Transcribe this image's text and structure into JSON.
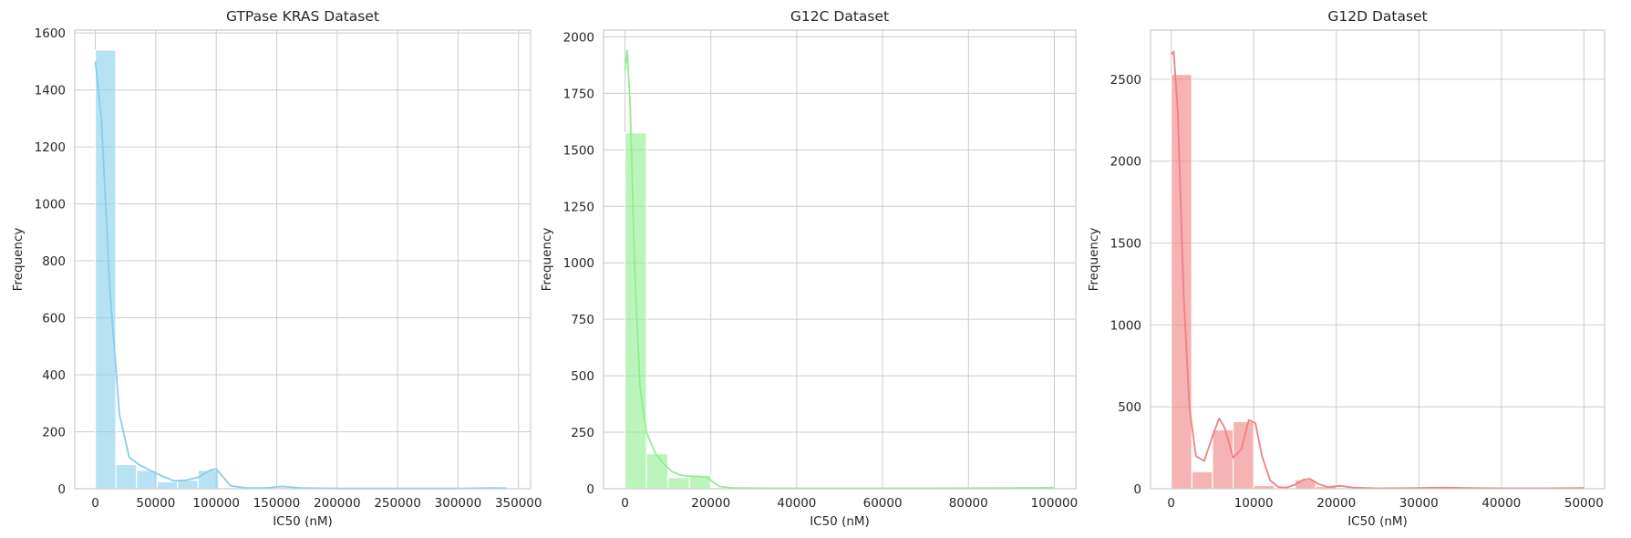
{
  "chart_data": [
    {
      "type": "histogram",
      "title": "GTPase KRAS Dataset",
      "xlabel": "IC50 (nM)",
      "ylabel": "Frequency",
      "xlim": [
        -17000,
        360000
      ],
      "ylim": [
        0,
        1610
      ],
      "xticks": [
        0,
        50000,
        100000,
        150000,
        200000,
        250000,
        300000,
        350000
      ],
      "yticks": [
        0,
        200,
        400,
        600,
        800,
        1000,
        1200,
        1400,
        1600
      ],
      "bar_color": "#87ceeb",
      "bin_edges": [
        0,
        17000,
        34000,
        51000,
        68000,
        85000,
        102000,
        119000,
        136000,
        153000,
        170000,
        187000,
        204000,
        221000,
        238000,
        255000,
        272000,
        289000,
        306000,
        323000,
        340000
      ],
      "counts": [
        1540,
        85,
        65,
        25,
        30,
        65,
        3,
        2,
        4,
        3,
        1,
        0,
        0,
        0,
        0,
        1,
        0,
        0,
        0,
        2
      ],
      "kde": {
        "x": [
          0,
          5000,
          12000,
          20000,
          28000,
          36000,
          45000,
          55000,
          65000,
          75000,
          85000,
          95000,
          100000,
          105000,
          112000,
          125000,
          140000,
          155000,
          170000,
          200000,
          250000,
          300000,
          330000,
          340000
        ],
        "y": [
          1500,
          1300,
          700,
          260,
          110,
          85,
          65,
          45,
          28,
          30,
          40,
          65,
          70,
          45,
          10,
          3,
          3,
          8,
          3,
          1,
          1,
          1,
          3,
          2
        ]
      },
      "grid": true
    },
    {
      "type": "histogram",
      "title": "G12C Dataset",
      "xlabel": "IC50 (nM)",
      "ylabel": "Frequency",
      "xlim": [
        -5000,
        105000
      ],
      "ylim": [
        0,
        2030
      ],
      "xticks": [
        0,
        20000,
        40000,
        60000,
        80000,
        100000
      ],
      "yticks": [
        0,
        250,
        500,
        750,
        1000,
        1250,
        1500,
        1750,
        2000
      ],
      "bar_color": "#90ee90",
      "bin_edges": [
        0,
        5000,
        10000,
        15000,
        20000,
        25000,
        30000,
        35000,
        40000,
        45000,
        50000,
        55000,
        60000,
        65000,
        70000,
        75000,
        80000,
        85000,
        90000,
        95000,
        100000
      ],
      "counts": [
        1575,
        155,
        50,
        60,
        5,
        2,
        1,
        1,
        1,
        1,
        1,
        1,
        1,
        1,
        1,
        1,
        1,
        1,
        1,
        2
      ],
      "kde": {
        "x": [
          0,
          500,
          1200,
          2200,
          3500,
          5000,
          7000,
          9000,
          11000,
          13000,
          15000,
          17000,
          19000,
          20500,
          22000,
          25000,
          30000,
          40000,
          60000,
          80000,
          95000,
          100000
        ],
        "y": [
          1850,
          1940,
          1700,
          1000,
          450,
          250,
          160,
          110,
          75,
          60,
          55,
          55,
          52,
          30,
          10,
          4,
          3,
          2,
          2,
          3,
          4,
          5
        ]
      },
      "grid": true
    },
    {
      "type": "histogram",
      "title": "G12D Dataset",
      "xlabel": "IC50 (nM)",
      "ylabel": "Frequency",
      "xlim": [
        -2500,
        52500
      ],
      "ylim": [
        0,
        2800
      ],
      "xticks": [
        0,
        10000,
        20000,
        30000,
        40000,
        50000
      ],
      "yticks": [
        0,
        500,
        1000,
        1500,
        2000,
        2500
      ],
      "bar_color": "#f08080",
      "bin_edges": [
        0,
        2500,
        5000,
        7500,
        10000,
        12500,
        15000,
        17500,
        20000,
        22500,
        25000,
        27500,
        30000,
        32500,
        35000,
        37500,
        40000,
        42500,
        45000,
        47500,
        50000
      ],
      "counts": [
        2530,
        105,
        360,
        410,
        20,
        0,
        55,
        15,
        3,
        1,
        1,
        3,
        3,
        3,
        1,
        1,
        1,
        1,
        1,
        1
      ],
      "kde": {
        "x": [
          0,
          300,
          800,
          1500,
          2200,
          3000,
          4000,
          5000,
          5800,
          6500,
          7500,
          8500,
          9400,
          10200,
          11000,
          12000,
          13000,
          14000,
          15000,
          16000,
          16800,
          17800,
          19000,
          20500,
          22000,
          25000,
          30000,
          33000,
          36000,
          40000,
          45000,
          50000
        ],
        "y": [
          2650,
          2670,
          2300,
          1200,
          500,
          200,
          170,
          320,
          430,
          370,
          190,
          240,
          420,
          400,
          200,
          50,
          10,
          8,
          25,
          55,
          60,
          30,
          10,
          18,
          8,
          3,
          5,
          8,
          5,
          3,
          3,
          5
        ]
      },
      "grid": true
    }
  ]
}
